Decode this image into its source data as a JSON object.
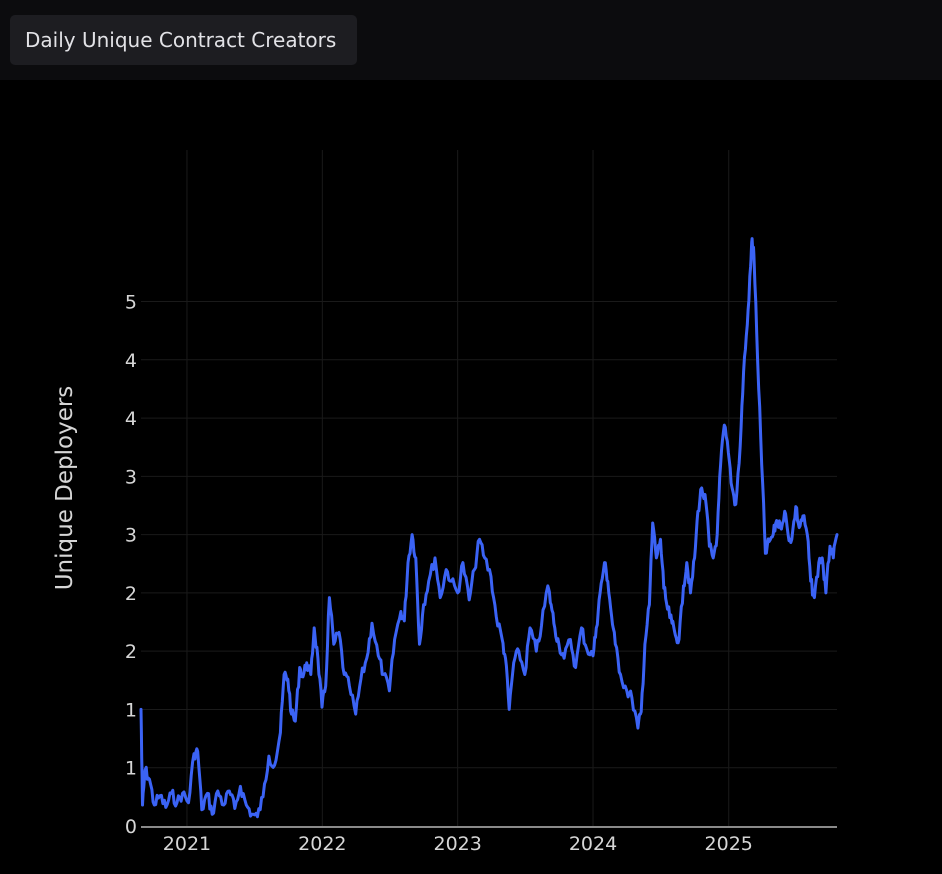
{
  "header": {
    "title_label": "Daily Unique Contract Creators"
  },
  "colors": {
    "background": "#000000",
    "toolbar": "#0c0c0e",
    "button": "#1d1d21",
    "line": "#3b63f5",
    "grid": "#1a1a1a",
    "text": "#d6d6d6"
  },
  "chart_data": {
    "type": "line",
    "title": "",
    "xlabel": "",
    "ylabel": "Unique Deployers",
    "grid": true,
    "ylim": [
      0,
      5.8
    ],
    "y_ticks": [
      {
        "value": 0,
        "label": "0"
      },
      {
        "value": 0.5,
        "label": "1"
      },
      {
        "value": 1.0,
        "label": "1"
      },
      {
        "value": 1.5,
        "label": "2"
      },
      {
        "value": 2.0,
        "label": "2"
      },
      {
        "value": 2.5,
        "label": "3"
      },
      {
        "value": 3.0,
        "label": "3"
      },
      {
        "value": 3.5,
        "label": "4"
      },
      {
        "value": 4.0,
        "label": "4"
      },
      {
        "value": 4.5,
        "label": "5"
      }
    ],
    "x_ticks": [
      "2021",
      "2022",
      "2023",
      "2024",
      "2025"
    ],
    "xlim": [
      "2020-08-30",
      "2025-10-20"
    ],
    "series": [
      {
        "name": "",
        "points": [
          [
            "2020-08-30",
            1.0
          ],
          [
            "2020-09-03",
            0.18
          ],
          [
            "2020-09-10",
            0.48
          ],
          [
            "2020-09-22",
            0.4
          ],
          [
            "2020-10-05",
            0.18
          ],
          [
            "2020-10-20",
            0.26
          ],
          [
            "2020-11-05",
            0.16
          ],
          [
            "2020-11-20",
            0.28
          ],
          [
            "2020-12-05",
            0.2
          ],
          [
            "2020-12-20",
            0.28
          ],
          [
            "2021-01-05",
            0.2
          ],
          [
            "2021-01-20",
            0.62
          ],
          [
            "2021-01-30",
            0.64
          ],
          [
            "2021-02-10",
            0.14
          ],
          [
            "2021-02-25",
            0.28
          ],
          [
            "2021-03-10",
            0.1
          ],
          [
            "2021-03-25",
            0.3
          ],
          [
            "2021-04-10",
            0.18
          ],
          [
            "2021-04-25",
            0.3
          ],
          [
            "2021-05-10",
            0.15
          ],
          [
            "2021-05-25",
            0.34
          ],
          [
            "2021-06-10",
            0.18
          ],
          [
            "2021-06-25",
            0.1
          ],
          [
            "2021-07-10",
            0.08
          ],
          [
            "2021-07-25",
            0.25
          ],
          [
            "2021-08-10",
            0.6
          ],
          [
            "2021-08-25",
            0.52
          ],
          [
            "2021-09-10",
            0.8
          ],
          [
            "2021-09-20",
            1.3
          ],
          [
            "2021-09-30",
            1.26
          ],
          [
            "2021-10-10",
            0.96
          ],
          [
            "2021-10-20",
            0.9
          ],
          [
            "2021-11-01",
            1.36
          ],
          [
            "2021-11-10",
            1.28
          ],
          [
            "2021-11-20",
            1.4
          ],
          [
            "2021-12-01",
            1.3
          ],
          [
            "2021-12-10",
            1.7
          ],
          [
            "2021-12-20",
            1.44
          ],
          [
            "2021-12-31",
            1.02
          ],
          [
            "2022-01-10",
            1.2
          ],
          [
            "2022-01-20",
            1.96
          ],
          [
            "2022-02-01",
            1.56
          ],
          [
            "2022-02-15",
            1.66
          ],
          [
            "2022-03-01",
            1.3
          ],
          [
            "2022-03-15",
            1.2
          ],
          [
            "2022-04-01",
            0.96
          ],
          [
            "2022-04-15",
            1.26
          ],
          [
            "2022-05-01",
            1.44
          ],
          [
            "2022-05-15",
            1.74
          ],
          [
            "2022-06-01",
            1.46
          ],
          [
            "2022-06-15",
            1.3
          ],
          [
            "2022-07-01",
            1.16
          ],
          [
            "2022-07-15",
            1.6
          ],
          [
            "2022-08-01",
            1.84
          ],
          [
            "2022-08-10",
            1.76
          ],
          [
            "2022-08-20",
            2.26
          ],
          [
            "2022-08-31",
            2.5
          ],
          [
            "2022-09-10",
            2.3
          ],
          [
            "2022-09-20",
            1.56
          ],
          [
            "2022-10-01",
            1.9
          ],
          [
            "2022-10-15",
            2.1
          ],
          [
            "2022-11-01",
            2.3
          ],
          [
            "2022-11-15",
            1.96
          ],
          [
            "2022-12-01",
            2.2
          ],
          [
            "2022-12-15",
            2.1
          ],
          [
            "2023-01-01",
            2.0
          ],
          [
            "2023-01-15",
            2.26
          ],
          [
            "2023-02-01",
            1.94
          ],
          [
            "2023-02-15",
            2.2
          ],
          [
            "2023-03-01",
            2.46
          ],
          [
            "2023-03-15",
            2.3
          ],
          [
            "2023-04-01",
            2.14
          ],
          [
            "2023-04-15",
            1.8
          ],
          [
            "2023-05-01",
            1.6
          ],
          [
            "2023-05-10",
            1.44
          ],
          [
            "2023-05-20",
            1.0
          ],
          [
            "2023-06-01",
            1.4
          ],
          [
            "2023-06-15",
            1.5
          ],
          [
            "2023-07-01",
            1.3
          ],
          [
            "2023-07-15",
            1.7
          ],
          [
            "2023-08-01",
            1.5
          ],
          [
            "2023-08-15",
            1.72
          ],
          [
            "2023-09-01",
            2.06
          ],
          [
            "2023-09-10",
            1.9
          ],
          [
            "2023-09-20",
            1.7
          ],
          [
            "2023-10-01",
            1.56
          ],
          [
            "2023-10-15",
            1.44
          ],
          [
            "2023-11-01",
            1.6
          ],
          [
            "2023-11-15",
            1.36
          ],
          [
            "2023-12-01",
            1.7
          ],
          [
            "2023-12-15",
            1.52
          ],
          [
            "2024-01-01",
            1.46
          ],
          [
            "2024-01-10",
            1.7
          ],
          [
            "2024-01-20",
            2.0
          ],
          [
            "2024-02-01",
            2.26
          ],
          [
            "2024-02-10",
            2.1
          ],
          [
            "2024-02-20",
            1.8
          ],
          [
            "2024-03-01",
            1.56
          ],
          [
            "2024-03-15",
            1.3
          ],
          [
            "2024-04-01",
            1.16
          ],
          [
            "2024-04-15",
            1.1
          ],
          [
            "2024-05-01",
            0.84
          ],
          [
            "2024-05-10",
            0.98
          ],
          [
            "2024-05-20",
            1.56
          ],
          [
            "2024-06-01",
            1.9
          ],
          [
            "2024-06-10",
            2.6
          ],
          [
            "2024-06-20",
            2.3
          ],
          [
            "2024-07-01",
            2.46
          ],
          [
            "2024-07-10",
            2.04
          ],
          [
            "2024-07-20",
            1.86
          ],
          [
            "2024-08-01",
            1.74
          ],
          [
            "2024-08-10",
            1.64
          ],
          [
            "2024-08-20",
            1.6
          ],
          [
            "2024-09-01",
            2.06
          ],
          [
            "2024-09-10",
            2.26
          ],
          [
            "2024-09-20",
            2.0
          ],
          [
            "2024-10-01",
            2.3
          ],
          [
            "2024-10-10",
            2.7
          ],
          [
            "2024-10-20",
            2.9
          ],
          [
            "2024-11-01",
            2.76
          ],
          [
            "2024-11-10",
            2.4
          ],
          [
            "2024-11-20",
            2.3
          ],
          [
            "2024-12-01",
            2.5
          ],
          [
            "2024-12-10",
            3.1
          ],
          [
            "2024-12-20",
            3.44
          ],
          [
            "2024-12-31",
            3.2
          ],
          [
            "2025-01-10",
            2.9
          ],
          [
            "2025-01-20",
            2.76
          ],
          [
            "2025-02-01",
            3.26
          ],
          [
            "2025-02-10",
            3.9
          ],
          [
            "2025-02-20",
            4.3
          ],
          [
            "2025-03-01",
            4.8
          ],
          [
            "2025-03-05",
            5.04
          ],
          [
            "2025-03-10",
            4.9
          ],
          [
            "2025-03-20",
            4.0
          ],
          [
            "2025-03-31",
            3.1
          ],
          [
            "2025-04-10",
            2.34
          ],
          [
            "2025-04-20",
            2.44
          ],
          [
            "2025-05-01",
            2.5
          ],
          [
            "2025-05-10",
            2.62
          ],
          [
            "2025-05-20",
            2.56
          ],
          [
            "2025-06-01",
            2.7
          ],
          [
            "2025-06-10",
            2.5
          ],
          [
            "2025-06-20",
            2.46
          ],
          [
            "2025-07-01",
            2.74
          ],
          [
            "2025-07-10",
            2.56
          ],
          [
            "2025-07-20",
            2.66
          ],
          [
            "2025-08-01",
            2.5
          ],
          [
            "2025-08-10",
            2.1
          ],
          [
            "2025-08-20",
            1.96
          ],
          [
            "2025-09-01",
            2.26
          ],
          [
            "2025-09-10",
            2.3
          ],
          [
            "2025-09-20",
            2.0
          ],
          [
            "2025-10-01",
            2.4
          ],
          [
            "2025-10-10",
            2.3
          ],
          [
            "2025-10-20",
            2.5
          ]
        ]
      }
    ]
  }
}
